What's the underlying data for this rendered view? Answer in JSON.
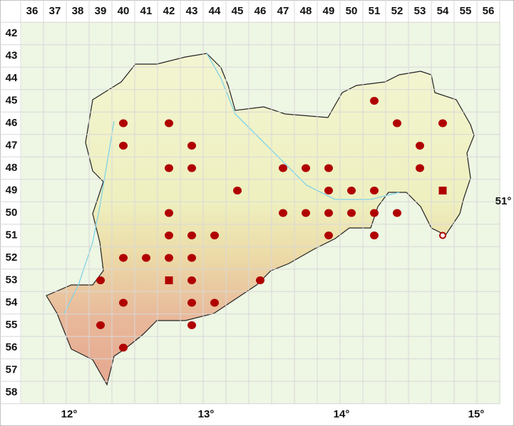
{
  "grid": {
    "columns": [
      "36",
      "37",
      "38",
      "39",
      "40",
      "41",
      "42",
      "43",
      "44",
      "45",
      "46",
      "47",
      "48",
      "49",
      "50",
      "51",
      "52",
      "53",
      "54",
      "55",
      "56"
    ],
    "rows": [
      "42",
      "43",
      "44",
      "45",
      "46",
      "47",
      "48",
      "49",
      "50",
      "51",
      "52",
      "53",
      "54",
      "55",
      "56",
      "57",
      "58"
    ]
  },
  "longitude_labels": [
    "12°",
    "13°",
    "14°",
    "15°"
  ],
  "latitude_labels": [
    "51°"
  ],
  "markers": [
    {
      "col": 51,
      "row": 45,
      "type": "dot"
    },
    {
      "col": 40,
      "row": 46,
      "type": "dot"
    },
    {
      "col": 42,
      "row": 46,
      "type": "dot"
    },
    {
      "col": 52,
      "row": 46,
      "type": "dot"
    },
    {
      "col": 54,
      "row": 46,
      "type": "dot"
    },
    {
      "col": 40,
      "row": 47,
      "type": "dot"
    },
    {
      "col": 43,
      "row": 47,
      "type": "dot"
    },
    {
      "col": 53,
      "row": 47,
      "type": "dot"
    },
    {
      "col": 42,
      "row": 48,
      "type": "dot"
    },
    {
      "col": 43,
      "row": 48,
      "type": "dot"
    },
    {
      "col": 47,
      "row": 48,
      "type": "dot"
    },
    {
      "col": 48,
      "row": 48,
      "type": "dot"
    },
    {
      "col": 49,
      "row": 48,
      "type": "dot"
    },
    {
      "col": 53,
      "row": 48,
      "type": "dot"
    },
    {
      "col": 45,
      "row": 49,
      "type": "dot"
    },
    {
      "col": 49,
      "row": 49,
      "type": "dot"
    },
    {
      "col": 50,
      "row": 49,
      "type": "dot"
    },
    {
      "col": 51,
      "row": 49,
      "type": "dot"
    },
    {
      "col": 54,
      "row": 49,
      "type": "square"
    },
    {
      "col": 42,
      "row": 50,
      "type": "dot"
    },
    {
      "col": 47,
      "row": 50,
      "type": "dot"
    },
    {
      "col": 48,
      "row": 50,
      "type": "dot"
    },
    {
      "col": 49,
      "row": 50,
      "type": "dot"
    },
    {
      "col": 50,
      "row": 50,
      "type": "dot"
    },
    {
      "col": 51,
      "row": 50,
      "type": "dot"
    },
    {
      "col": 52,
      "row": 50,
      "type": "dot"
    },
    {
      "col": 42,
      "row": 51,
      "type": "dot"
    },
    {
      "col": 43,
      "row": 51,
      "type": "dot"
    },
    {
      "col": 44,
      "row": 51,
      "type": "dot"
    },
    {
      "col": 49,
      "row": 51,
      "type": "dot"
    },
    {
      "col": 51,
      "row": 51,
      "type": "dot"
    },
    {
      "col": 54,
      "row": 51,
      "type": "open"
    },
    {
      "col": 40,
      "row": 52,
      "type": "dot"
    },
    {
      "col": 41,
      "row": 52,
      "type": "dot"
    },
    {
      "col": 42,
      "row": 52,
      "type": "dot"
    },
    {
      "col": 43,
      "row": 52,
      "type": "dot"
    },
    {
      "col": 39,
      "row": 53,
      "type": "dot"
    },
    {
      "col": 42,
      "row": 53,
      "type": "square"
    },
    {
      "col": 43,
      "row": 53,
      "type": "dot"
    },
    {
      "col": 46,
      "row": 53,
      "type": "dot"
    },
    {
      "col": 40,
      "row": 54,
      "type": "dot"
    },
    {
      "col": 43,
      "row": 54,
      "type": "dot"
    },
    {
      "col": 44,
      "row": 54,
      "type": "dot"
    },
    {
      "col": 39,
      "row": 55,
      "type": "dot"
    },
    {
      "col": 43,
      "row": 55,
      "type": "dot"
    },
    {
      "col": 40,
      "row": 56,
      "type": "dot"
    }
  ]
}
